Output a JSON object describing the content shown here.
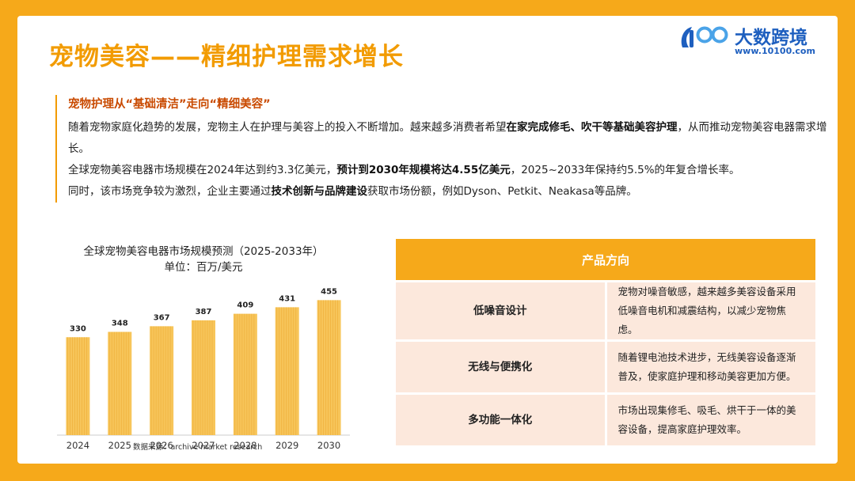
{
  "title": "宠物美容——精细护理需求增长",
  "logo": {
    "brand": "大数跨境",
    "url": "www.10100.com"
  },
  "intro": {
    "subtitle": "宠物护理从“基础清洁”走向“精细美容”",
    "p1_a": "随着宠物家庭化趋势的发展，宠物主人在护理与美容上的投入不断增加。越来越多消费者希望",
    "p1_b": "在家完成修毛、吹干等基础美容护理",
    "p1_c": "，从而推动宠物美容电器需求增长。",
    "p2_a": "全球宠物美容电器市场规模在2024年达到约3.3亿美元，",
    "p2_b": "预计到2030年规模将达4.55亿美元",
    "p2_c": "，2025~2033年保持约5.5%的年复合增长率。",
    "p3_a": "同时，该市场竞争较为激烈，企业主要通过",
    "p3_b": "技术创新与品牌建设",
    "p3_c": "获取市场份额，例如Dyson、Petkit、Neakasa等品牌。"
  },
  "chart_data": {
    "type": "bar",
    "title": "全球宠物美容电器市场规模预测（2025-2033年）",
    "unit": "单位：百万/美元",
    "categories": [
      "2024",
      "2025",
      "2026",
      "2027",
      "2028",
      "2029",
      "2030"
    ],
    "values": [
      330,
      348,
      367,
      387,
      409,
      431,
      455
    ],
    "ylim": [
      0,
      480
    ],
    "bar_color": "#f7c55a",
    "source": "数据来源：archive market research"
  },
  "table": {
    "header": "产品方向",
    "rows": [
      {
        "name": "低噪音设计",
        "desc": "宠物对噪音敏感，越来越多美容设备采用低噪音电机和减震结构，以减少宠物焦虑。"
      },
      {
        "name": "无线与便携化",
        "desc": "随着锂电池技术进步，无线美容设备逐渐普及，使家庭护理和移动美容更加方便。"
      },
      {
        "name": "多功能一体化",
        "desc": "市场出现集修毛、吸毛、烘干于一体的美容设备，提高家庭护理效率。"
      }
    ]
  }
}
